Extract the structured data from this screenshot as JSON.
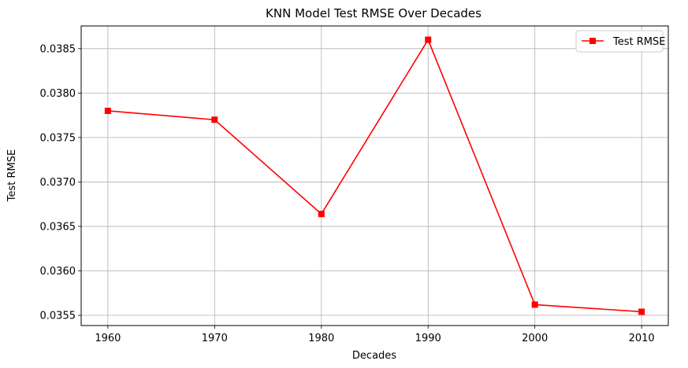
{
  "chart_data": {
    "type": "line",
    "title": "KNN Model Test RMSE Over Decades",
    "xlabel": "Decades",
    "ylabel": "Test RMSE",
    "x": [
      1960,
      1970,
      1980,
      1990,
      2000,
      2010
    ],
    "x_tick_labels": [
      "1960",
      "1970",
      "1980",
      "1990",
      "2000",
      "2010"
    ],
    "y_ticks": [
      0.0355,
      0.036,
      0.0365,
      0.037,
      0.0375,
      0.038,
      0.0385
    ],
    "y_tick_labels": [
      "0.0355",
      "0.0360",
      "0.0365",
      "0.0370",
      "0.0375",
      "0.0380",
      "0.0385"
    ],
    "xlim": [
      1957.5,
      2012.5
    ],
    "ylim": [
      0.035385,
      0.038755
    ],
    "grid": true,
    "legend_position": "top-right",
    "series": [
      {
        "name": "Test RMSE",
        "color": "#ff0000",
        "marker": "square",
        "values": [
          0.0378,
          0.0377,
          0.03664,
          0.0386,
          0.03562,
          0.03554
        ]
      }
    ]
  }
}
